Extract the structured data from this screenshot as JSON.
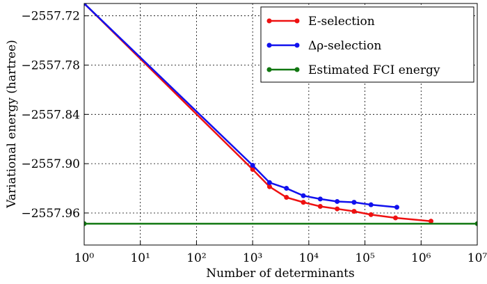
{
  "chart_data": {
    "type": "line",
    "xlabel": "Number of determinants",
    "ylabel": "Variational energy (hartree)",
    "xscale": "log",
    "grid": true,
    "legend": "upper right",
    "xlim": [
      1,
      10000000
    ],
    "ylim": [
      -2557.999,
      -2557.705
    ],
    "xticks": [
      {
        "value": 1,
        "label": "10⁰"
      },
      {
        "value": 10,
        "label": "10¹"
      },
      {
        "value": 100,
        "label": "10²"
      },
      {
        "value": 1000,
        "label": "10³"
      },
      {
        "value": 10000,
        "label": "10⁴"
      },
      {
        "value": 100000,
        "label": "10⁵"
      },
      {
        "value": 1000000,
        "label": "10⁶"
      },
      {
        "value": 10000000,
        "label": "10⁷"
      }
    ],
    "yticks": [
      {
        "value": -2557.72,
        "label": "−2557.72"
      },
      {
        "value": -2557.78,
        "label": "−2557.78"
      },
      {
        "value": -2557.84,
        "label": "−2557.84"
      },
      {
        "value": -2557.9,
        "label": "−2557.90"
      },
      {
        "value": -2557.96,
        "label": "−2557.96"
      }
    ],
    "series": [
      {
        "name": "E-selection",
        "color": "#ee1111",
        "x": [
          1,
          1000,
          2000,
          4000,
          8000,
          16000,
          32000,
          64000,
          128000,
          350000,
          1500000
        ],
        "values": [
          -2557.705,
          -2557.907,
          -2557.928,
          -2557.941,
          -2557.947,
          -2557.952,
          -2557.955,
          -2557.958,
          -2557.962,
          -2557.966,
          -2557.97
        ]
      },
      {
        "name": "Δρ-selection",
        "color": "#1111ee",
        "x": [
          1,
          1000,
          2000,
          4000,
          8000,
          16000,
          32000,
          64000,
          128000,
          370000
        ],
        "values": [
          -2557.705,
          -2557.902,
          -2557.923,
          -2557.93,
          -2557.939,
          -2557.943,
          -2557.946,
          -2557.947,
          -2557.95,
          -2557.953
        ]
      },
      {
        "name": "Estimated FCI energy",
        "color": "#117711",
        "x": [
          1,
          10000000
        ],
        "values": [
          -2557.973,
          -2557.973
        ]
      }
    ]
  }
}
